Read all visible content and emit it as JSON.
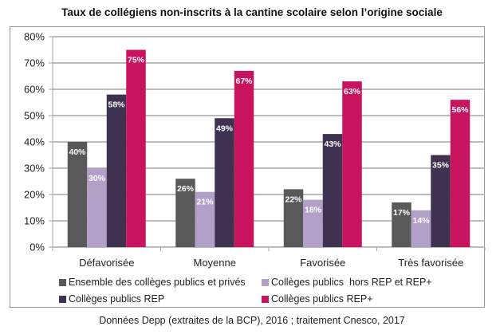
{
  "chart_data": {
    "type": "bar",
    "title": "Taux de collégiens non-inscrits à la cantine scolaire selon l’origine sociale",
    "xlabel": "",
    "ylabel": "",
    "ylim": [
      0,
      0.8
    ],
    "yticks": [
      0,
      0.1,
      0.2,
      0.3,
      0.4,
      0.5,
      0.6,
      0.7,
      0.8
    ],
    "ytick_labels": [
      "0%",
      "10%",
      "20%",
      "30%",
      "40%",
      "50%",
      "60%",
      "70%",
      "80%"
    ],
    "grid": true,
    "legend_position": "bottom",
    "categories": [
      "Défavorisée",
      "Moyenne",
      "Favorisée",
      "Très favorisée"
    ],
    "series": [
      {
        "name": "Ensemble des collèges publics et privés",
        "color": "#595959",
        "values": [
          0.4,
          0.26,
          0.22,
          0.17
        ],
        "labels": [
          "40%",
          "26%",
          "22%",
          "17%"
        ]
      },
      {
        "name": "Collèges publics  hors REP et REP+",
        "color": "#b2a0c8",
        "values": [
          0.3,
          0.21,
          0.18,
          0.14
        ],
        "labels": [
          "30%",
          "21%",
          "18%",
          "14%"
        ]
      },
      {
        "name": "Collèges publics REP",
        "color": "#3f3150",
        "values": [
          0.58,
          0.49,
          0.43,
          0.35
        ],
        "labels": [
          "58%",
          "49%",
          "43%",
          "35%"
        ]
      },
      {
        "name": "Collèges publics REP+",
        "color": "#c8135e",
        "values": [
          0.75,
          0.67,
          0.63,
          0.56
        ],
        "labels": [
          "75%",
          "67%",
          "63%",
          "56%"
        ]
      }
    ]
  },
  "source": "Données Depp (extraites de la BCP), 2016 ; traitement Cnesco, 2017"
}
